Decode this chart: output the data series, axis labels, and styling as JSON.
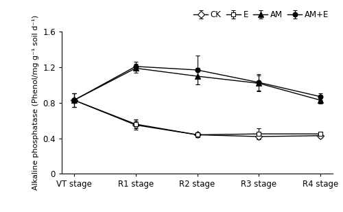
{
  "x_labels": [
    "VT stage",
    "R1 stage",
    "R2 stage",
    "R3 stage",
    "R4 stage"
  ],
  "series": {
    "CK": {
      "y": [
        0.83,
        0.55,
        0.44,
        0.42,
        0.43
      ],
      "yerr": [
        0.08,
        0.05,
        0.025,
        0.025,
        0.025
      ],
      "marker": "D",
      "markerfacecolor": "white",
      "markeredgecolor": "black",
      "color": "black",
      "markersize": 5,
      "linestyle": "-"
    },
    "E": {
      "y": [
        0.83,
        0.56,
        0.44,
        0.45,
        0.45
      ],
      "yerr": [
        0.08,
        0.05,
        0.03,
        0.06,
        0.025
      ],
      "marker": "s",
      "markerfacecolor": "white",
      "markeredgecolor": "black",
      "color": "black",
      "markersize": 5,
      "linestyle": "-"
    },
    "AM": {
      "y": [
        0.83,
        1.19,
        1.1,
        1.02,
        0.83
      ],
      "yerr": [
        0.08,
        0.05,
        0.09,
        0.09,
        0.04
      ],
      "marker": "^",
      "markerfacecolor": "black",
      "markeredgecolor": "black",
      "color": "black",
      "markersize": 6,
      "linestyle": "-"
    },
    "AM+E": {
      "y": [
        0.83,
        1.21,
        1.17,
        1.03,
        0.87
      ],
      "yerr": [
        0.08,
        0.05,
        0.16,
        0.09,
        0.04
      ],
      "marker": "o",
      "markerfacecolor": "black",
      "markeredgecolor": "black",
      "color": "black",
      "markersize": 5,
      "linestyle": "-"
    }
  },
  "ylabel": "Alkaline phosphatase (Phenol/mg g⁻¹ soil d⁻¹)",
  "ylim": [
    0,
    1.6
  ],
  "yticks": [
    0,
    0.4,
    0.8,
    1.2,
    1.6
  ],
  "ytick_labels": [
    "0",
    "0.4",
    "0.8",
    "1.2",
    "1.6"
  ],
  "legend_order": [
    "CK",
    "E",
    "AM",
    "AM+E"
  ],
  "background_color": "white",
  "linewidth": 1.0,
  "capsize": 2.5,
  "elinewidth": 0.8
}
